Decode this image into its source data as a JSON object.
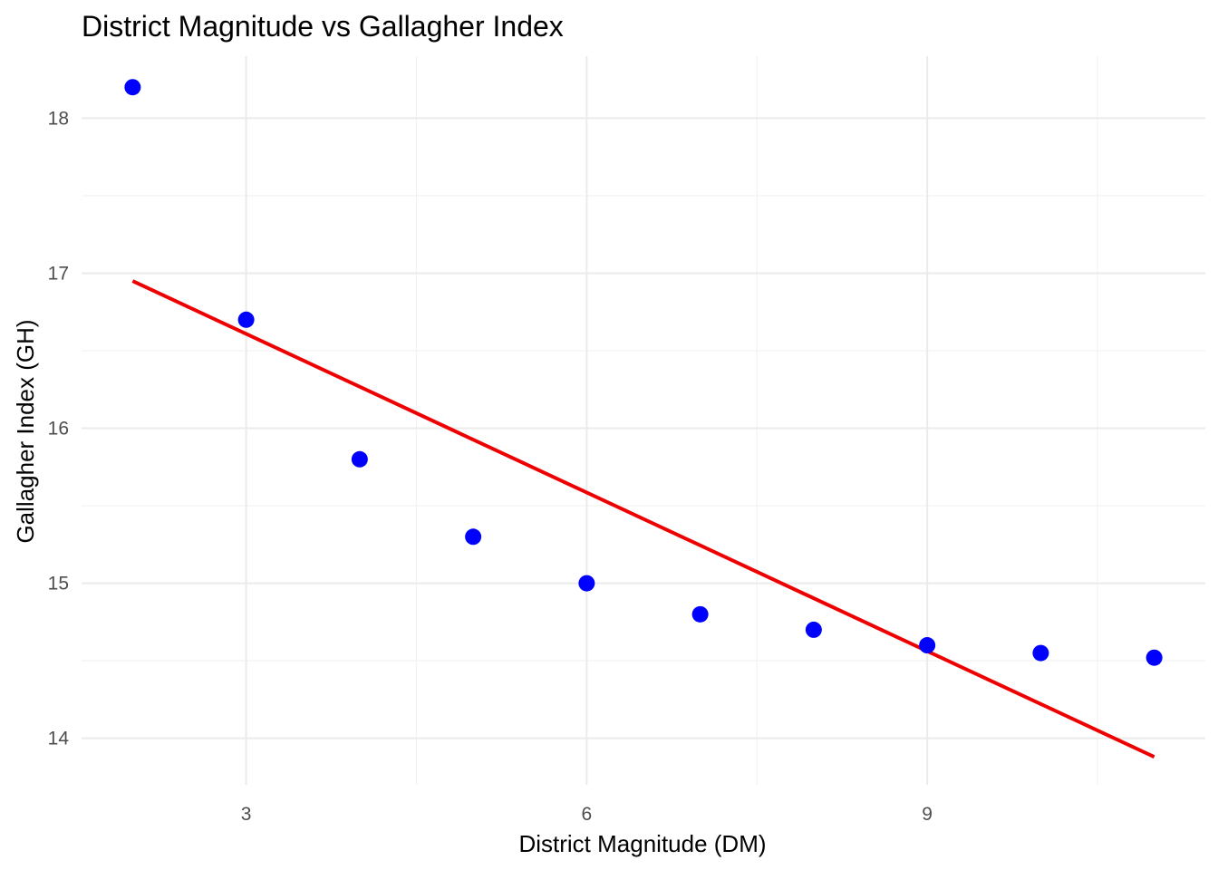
{
  "chart_data": {
    "type": "scatter",
    "title": "District Magnitude vs Gallagher Index",
    "xlabel": "District Magnitude (DM)",
    "ylabel": "Gallagher Index (GH)",
    "xlim": [
      1.55,
      11.45
    ],
    "ylim": [
      13.7,
      18.4
    ],
    "x_ticks": [
      3,
      6,
      9
    ],
    "x_minor_ticks": [
      4.5,
      7.5,
      10.5
    ],
    "y_ticks": [
      14,
      15,
      16,
      17,
      18
    ],
    "y_minor_ticks": [
      14.5,
      15.5,
      16.5,
      17.5
    ],
    "grid": true,
    "legend": "none",
    "series": [
      {
        "type": "scatter",
        "color": "#0000ff",
        "points": [
          {
            "x": 2,
            "y": 18.2
          },
          {
            "x": 3,
            "y": 16.7
          },
          {
            "x": 4,
            "y": 15.8
          },
          {
            "x": 5,
            "y": 15.3
          },
          {
            "x": 6,
            "y": 15.0
          },
          {
            "x": 7,
            "y": 14.8
          },
          {
            "x": 8,
            "y": 14.7
          },
          {
            "x": 9,
            "y": 14.6
          },
          {
            "x": 10,
            "y": 14.55
          },
          {
            "x": 11,
            "y": 14.52
          }
        ]
      },
      {
        "type": "line",
        "color": "#ee0000",
        "points": [
          {
            "x": 2,
            "y": 16.95
          },
          {
            "x": 11,
            "y": 13.88
          }
        ]
      }
    ]
  }
}
